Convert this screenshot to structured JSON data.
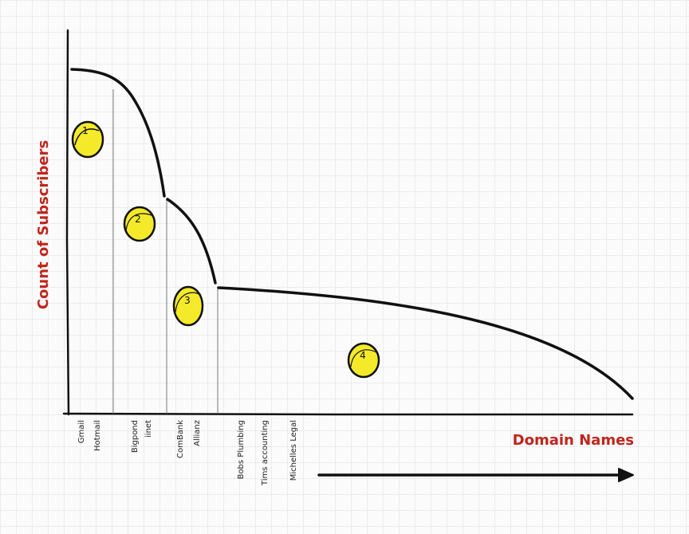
{
  "axes": {
    "y_label": "Count of Subscribers",
    "x_label": "Domain Names"
  },
  "colors": {
    "axis_label": "#c0251d",
    "badge_fill": "#f4ea2a",
    "ink": "#111111",
    "grid": "#ececec"
  },
  "segments": [
    {
      "number": "1",
      "domains": [
        "Gmail",
        "Hotmail"
      ]
    },
    {
      "number": "2",
      "domains": [
        "Bigpond",
        "iinet"
      ]
    },
    {
      "number": "3",
      "domains": [
        "ComBank",
        "Allianz"
      ]
    },
    {
      "number": "4",
      "domains": [
        "Bobs Plumbing",
        "Tims accounting",
        "Michelles Legal"
      ]
    }
  ]
}
